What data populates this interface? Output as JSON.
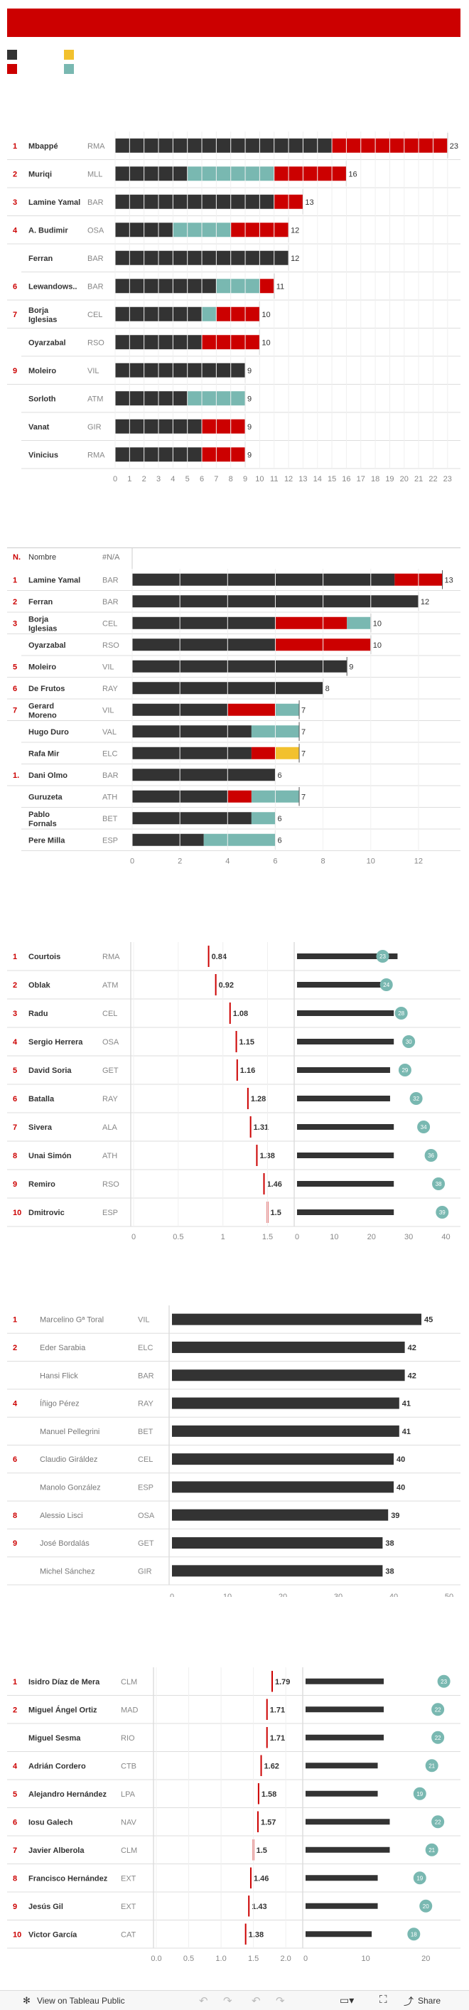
{
  "colors": {
    "dark": "#333333",
    "red": "#cc0000",
    "teal": "#79b8b1",
    "yellow": "#f2c12e",
    "grid": "#d9d9d9",
    "banner": "#cc0000"
  },
  "legend_swatches": [
    "#333333",
    "#f2c12e",
    "#cc0000",
    "#79b8b1"
  ],
  "chart_data": [
    {
      "type": "bar",
      "stacked": true,
      "orientation": "horizontal",
      "rows": [
        {
          "rank": "1",
          "name": "Mbappé",
          "team": "RMA",
          "segments": [
            [
              15,
              "#333333"
            ],
            [
              8,
              "#cc0000"
            ]
          ],
          "total": "23"
        },
        {
          "rank": "2",
          "name": "Muriqi",
          "team": "MLL",
          "segments": [
            [
              5,
              "#333333"
            ],
            [
              6,
              "#79b8b1"
            ],
            [
              5,
              "#cc0000"
            ]
          ],
          "total": "16"
        },
        {
          "rank": "3",
          "name": "Lamine Yamal",
          "team": "BAR",
          "segments": [
            [
              11,
              "#333333"
            ],
            [
              2,
              "#cc0000"
            ]
          ],
          "total": "13"
        },
        {
          "rank": "4",
          "name": "A. Budimir",
          "team": "OSA",
          "segments": [
            [
              4,
              "#333333"
            ],
            [
              4,
              "#79b8b1"
            ],
            [
              4,
              "#cc0000"
            ]
          ],
          "total": "12"
        },
        {
          "rank": "",
          "name": "Ferran",
          "team": "BAR",
          "segments": [
            [
              12,
              "#333333"
            ]
          ],
          "total": "12"
        },
        {
          "rank": "6",
          "name": "Lewandows..",
          "team": "BAR",
          "segments": [
            [
              7,
              "#333333"
            ],
            [
              3,
              "#79b8b1"
            ],
            [
              1,
              "#cc0000"
            ]
          ],
          "total": "11"
        },
        {
          "rank": "7",
          "name": "Borja Iglesias",
          "team": "CEL",
          "segments": [
            [
              6,
              "#333333"
            ],
            [
              1,
              "#79b8b1"
            ],
            [
              3,
              "#cc0000"
            ]
          ],
          "total": "10"
        },
        {
          "rank": "",
          "name": "Oyarzabal",
          "team": "RSO",
          "segments": [
            [
              6,
              "#333333"
            ],
            [
              4,
              "#cc0000"
            ]
          ],
          "total": "10"
        },
        {
          "rank": "9",
          "name": "Moleiro",
          "team": "VIL",
          "segments": [
            [
              9,
              "#333333"
            ]
          ],
          "total": "9"
        },
        {
          "rank": "",
          "name": "Sorloth",
          "team": "ATM",
          "segments": [
            [
              5,
              "#333333"
            ],
            [
              4,
              "#79b8b1"
            ]
          ],
          "total": "9"
        },
        {
          "rank": "",
          "name": "Vanat",
          "team": "GIR",
          "segments": [
            [
              6,
              "#333333"
            ],
            [
              3,
              "#cc0000"
            ]
          ],
          "total": "9"
        },
        {
          "rank": "",
          "name": "Vinicius",
          "team": "RMA",
          "segments": [
            [
              6,
              "#333333"
            ],
            [
              3,
              "#cc0000"
            ]
          ],
          "total": "9"
        }
      ],
      "ticks": [
        "0",
        "1",
        "2",
        "3",
        "4",
        "5",
        "6",
        "7",
        "8",
        "9",
        "10",
        "11",
        "12",
        "13",
        "14",
        "15",
        "16",
        "17",
        "18",
        "19",
        "20",
        "21",
        "22",
        "23"
      ],
      "xlim": [
        0,
        23.6
      ]
    },
    {
      "type": "bar",
      "stacked": true,
      "orientation": "horizontal",
      "header": {
        "rank": "N.",
        "name": "Nombre",
        "team": "#N/A"
      },
      "rows": [
        {
          "rank": "1",
          "name": "Lamine Yamal",
          "team": "BAR",
          "segments": [
            [
              11,
              "#333333"
            ],
            [
              2,
              "#cc0000"
            ]
          ],
          "total": "13"
        },
        {
          "rank": "2",
          "name": "Ferran",
          "team": "BAR",
          "segments": [
            [
              12,
              "#333333"
            ]
          ],
          "total": "12"
        },
        {
          "rank": "3",
          "name": "Borja Iglesias",
          "team": "CEL",
          "segments": [
            [
              6,
              "#333333"
            ],
            [
              3,
              "#cc0000"
            ],
            [
              1,
              "#79b8b1"
            ]
          ],
          "total": "10"
        },
        {
          "rank": "",
          "name": "Oyarzabal",
          "team": "RSO",
          "segments": [
            [
              6,
              "#333333"
            ],
            [
              4,
              "#cc0000"
            ]
          ],
          "total": "10"
        },
        {
          "rank": "5",
          "name": "Moleiro",
          "team": "VIL",
          "segments": [
            [
              9,
              "#333333"
            ]
          ],
          "total": "9"
        },
        {
          "rank": "6",
          "name": "De Frutos",
          "team": "RAY",
          "segments": [
            [
              8,
              "#333333"
            ]
          ],
          "total": "8"
        },
        {
          "rank": "7",
          "name": "Gerard Moreno",
          "team": "VIL",
          "segments": [
            [
              4,
              "#333333"
            ],
            [
              2,
              "#cc0000"
            ],
            [
              1,
              "#79b8b1"
            ]
          ],
          "total": "7"
        },
        {
          "rank": "",
          "name": "Hugo Duro",
          "team": "VAL",
          "segments": [
            [
              5,
              "#333333"
            ],
            [
              2,
              "#79b8b1"
            ]
          ],
          "total": "7"
        },
        {
          "rank": "",
          "name": "Rafa Mir",
          "team": "ELC",
          "segments": [
            [
              5,
              "#333333"
            ],
            [
              1,
              "#cc0000"
            ],
            [
              1,
              "#f2c12e"
            ]
          ],
          "total": "7"
        },
        {
          "rank": "1.",
          "name": "Dani Olmo",
          "team": "BAR",
          "segments": [
            [
              6,
              "#333333"
            ]
          ],
          "total": "6"
        },
        {
          "rank": "",
          "name": "Guruzeta",
          "team": "ATH",
          "segments": [
            [
              4,
              "#333333"
            ],
            [
              1,
              "#cc0000"
            ],
            [
              2,
              "#79b8b1"
            ]
          ],
          "total": "7"
        },
        {
          "rank": "",
          "name": "Pablo Fornals",
          "team": "BET",
          "segments": [
            [
              5,
              "#333333"
            ],
            [
              1,
              "#79b8b1"
            ]
          ],
          "total": "6"
        },
        {
          "rank": "",
          "name": "Pere Milla",
          "team": "ESP",
          "segments": [
            [
              3,
              "#333333"
            ],
            [
              3,
              "#79b8b1"
            ]
          ],
          "total": "6"
        }
      ],
      "ticks": [
        {
          "v": 0,
          "t": "0"
        },
        {
          "v": 2,
          "t": "2"
        },
        {
          "v": 4,
          "t": "4"
        },
        {
          "v": 6,
          "t": "6"
        },
        {
          "v": 8,
          "t": "8"
        },
        {
          "v": 10,
          "t": "10"
        },
        {
          "v": 12,
          "t": "12"
        }
      ],
      "xlim": [
        0,
        13.7
      ]
    },
    {
      "type": "dot-plot",
      "kind": "goalkeepers",
      "rows": [
        {
          "rank": "1",
          "name": "Courtois",
          "team": "RMA",
          "ratio": 0.84,
          "ratio_label": "0.84",
          "bar": 27,
          "dot": 23,
          "dot_label": "23"
        },
        {
          "rank": "2",
          "name": "Oblak",
          "team": "ATM",
          "ratio": 0.92,
          "ratio_label": "0.92",
          "bar": 24.5,
          "dot": 24,
          "dot_label": "24"
        },
        {
          "rank": "3",
          "name": "Radu",
          "team": "CEL",
          "ratio": 1.08,
          "ratio_label": "1.08",
          "bar": 26,
          "dot": 28,
          "dot_label": "28"
        },
        {
          "rank": "4",
          "name": "Sergio Herrera",
          "team": "OSA",
          "ratio": 1.15,
          "ratio_label": "1.15",
          "bar": 26,
          "dot": 30,
          "dot_label": "30"
        },
        {
          "rank": "5",
          "name": "David Soria",
          "team": "GET",
          "ratio": 1.16,
          "ratio_label": "1.16",
          "bar": 25,
          "dot": 29,
          "dot_label": "29"
        },
        {
          "rank": "6",
          "name": "Batalla",
          "team": "RAY",
          "ratio": 1.28,
          "ratio_label": "1.28",
          "bar": 25,
          "dot": 32,
          "dot_label": "32"
        },
        {
          "rank": "7",
          "name": "Sivera",
          "team": "ALA",
          "ratio": 1.31,
          "ratio_label": "1.31",
          "bar": 26,
          "dot": 34,
          "dot_label": "34"
        },
        {
          "rank": "8",
          "name": "Unai Simón",
          "team": "ATH",
          "ratio": 1.38,
          "ratio_label": "1.38",
          "bar": 26,
          "dot": 36,
          "dot_label": "36"
        },
        {
          "rank": "9",
          "name": "Remiro",
          "team": "RSO",
          "ratio": 1.46,
          "ratio_label": "1.46",
          "bar": 26,
          "dot": 38,
          "dot_label": "38"
        },
        {
          "rank": "10",
          "name": "Dmitrovic",
          "team": "ESP",
          "ratio": 1.5,
          "ratio_label": "1.5",
          "bar": 26,
          "dot": 39,
          "dot_label": "39"
        }
      ],
      "ticks_left": [
        {
          "v": 0,
          "t": "0"
        },
        {
          "v": 0.5,
          "t": "0.5"
        },
        {
          "v": 1,
          "t": "1"
        },
        {
          "v": 1.5,
          "t": "1.5"
        }
      ],
      "ticks_right": [
        {
          "v": 0,
          "t": "0"
        },
        {
          "v": 10,
          "t": "10"
        },
        {
          "v": 20,
          "t": "20"
        },
        {
          "v": 30,
          "t": "30"
        },
        {
          "v": 40,
          "t": "40"
        }
      ],
      "xlim_left": [
        0,
        1.83
      ],
      "xlim_right": [
        0,
        42
      ]
    },
    {
      "type": "bar",
      "orientation": "horizontal",
      "kind": "coaches",
      "rows": [
        {
          "rank": "1",
          "name": "Marcelino Gª Toral",
          "team": "VIL",
          "value": 45,
          "label": "45"
        },
        {
          "rank": "2",
          "name": "Eder Sarabia",
          "team": "ELC",
          "value": 42,
          "label": "42"
        },
        {
          "rank": "",
          "name": "Hansi Flick",
          "team": "BAR",
          "value": 42,
          "label": "42"
        },
        {
          "rank": "4",
          "name": "Íñigo Pérez",
          "team": "RAY",
          "value": 41,
          "label": "41"
        },
        {
          "rank": "",
          "name": "Manuel Pellegrini",
          "team": "BET",
          "value": 41,
          "label": "41"
        },
        {
          "rank": "6",
          "name": "Claudio Giráldez",
          "team": "CEL",
          "value": 40,
          "label": "40"
        },
        {
          "rank": "",
          "name": "Manolo González",
          "team": "ESP",
          "value": 40,
          "label": "40"
        },
        {
          "rank": "8",
          "name": "Alessio Lisci",
          "team": "OSA",
          "value": 39,
          "label": "39"
        },
        {
          "rank": "9",
          "name": "José Bordalás",
          "team": "GET",
          "value": 38,
          "label": "38"
        },
        {
          "rank": "",
          "name": "Michel Sánchez",
          "team": "GIR",
          "value": 38,
          "label": "38"
        }
      ],
      "ticks": [
        {
          "v": 0,
          "t": "0"
        },
        {
          "v": 10,
          "t": "10"
        },
        {
          "v": 20,
          "t": "20"
        },
        {
          "v": 30,
          "t": "30"
        },
        {
          "v": 40,
          "t": "40"
        },
        {
          "v": 50,
          "t": "50"
        }
      ],
      "xlim": [
        0,
        50
      ]
    },
    {
      "type": "dot-plot",
      "kind": "referees",
      "rows": [
        {
          "rank": "1",
          "name": "Isidro Díaz de Mera",
          "team": "CLM",
          "ratio": 1.79,
          "ratio_label": "1.79",
          "bar": 13,
          "dot": 23,
          "dot_label": "23"
        },
        {
          "rank": "2",
          "name": "Miguel Ángel Ortiz",
          "team": "MAD",
          "ratio": 1.71,
          "ratio_label": "1.71",
          "bar": 13,
          "dot": 22,
          "dot_label": "22"
        },
        {
          "rank": "",
          "name": "Miguel Sesma",
          "team": "RIO",
          "ratio": 1.71,
          "ratio_label": "1.71",
          "bar": 13,
          "dot": 22,
          "dot_label": "22"
        },
        {
          "rank": "4",
          "name": "Adrián Cordero",
          "team": "CTB",
          "ratio": 1.62,
          "ratio_label": "1.62",
          "bar": 12,
          "dot": 21,
          "dot_label": "21"
        },
        {
          "rank": "5",
          "name": "Alejandro Hernández",
          "team": "LPA",
          "ratio": 1.58,
          "ratio_label": "1.58",
          "bar": 12,
          "dot": 19,
          "dot_label": "19"
        },
        {
          "rank": "6",
          "name": "Iosu Galech",
          "team": "NAV",
          "ratio": 1.57,
          "ratio_label": "1.57",
          "bar": 14,
          "dot": 22,
          "dot_label": "22"
        },
        {
          "rank": "7",
          "name": "Javier Alberola",
          "team": "CLM",
          "ratio": 1.5,
          "ratio_label": "1.5",
          "bar": 14,
          "dot": 21,
          "dot_label": "21"
        },
        {
          "rank": "8",
          "name": "Francisco Hernández",
          "team": "EXT",
          "ratio": 1.46,
          "ratio_label": "1.46",
          "bar": 12,
          "dot": 19,
          "dot_label": "19"
        },
        {
          "rank": "9",
          "name": "Jesús Gil",
          "team": "EXT",
          "ratio": 1.43,
          "ratio_label": "1.43",
          "bar": 12,
          "dot": 20,
          "dot_label": "20"
        },
        {
          "rank": "10",
          "name": "Victor García",
          "team": "CAT",
          "ratio": 1.38,
          "ratio_label": "1.38",
          "bar": 11,
          "dot": 18,
          "dot_label": "18"
        }
      ],
      "ticks_left": [
        {
          "v": 0,
          "t": "0.0"
        },
        {
          "v": 0.5,
          "t": "0.5"
        },
        {
          "v": 1,
          "t": "1.0"
        },
        {
          "v": 1.5,
          "t": "1.5"
        },
        {
          "v": 2,
          "t": "2.0"
        }
      ],
      "ticks_right": [
        {
          "v": 0,
          "t": "0"
        },
        {
          "v": 10,
          "t": "10"
        },
        {
          "v": 20,
          "t": "20"
        }
      ],
      "xlim_left": [
        0,
        2.35
      ],
      "xlim_right": [
        0,
        26
      ]
    }
  ],
  "footer": {
    "view_label": "View on Tableau Public",
    "share_label": "Share"
  }
}
